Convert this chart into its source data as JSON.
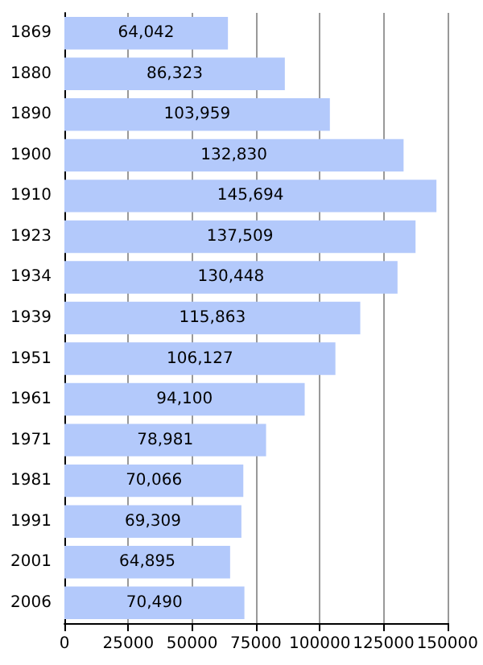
{
  "chart_data": {
    "type": "bar",
    "orientation": "horizontal",
    "categories": [
      "1869",
      "1880",
      "1890",
      "1900",
      "1910",
      "1923",
      "1934",
      "1939",
      "1951",
      "1961",
      "1971",
      "1981",
      "1991",
      "2001",
      "2006"
    ],
    "values": [
      64042,
      86323,
      103959,
      132830,
      145694,
      137509,
      130448,
      115863,
      106127,
      94100,
      78981,
      70066,
      69309,
      64895,
      70490
    ],
    "value_labels": [
      "64,042",
      "86,323",
      "103,959",
      "132,830",
      "145,694",
      "137,509",
      "130,448",
      "115,863",
      "106,127",
      "94,100",
      "78,981",
      "70,066",
      "69,309",
      "64,895",
      "70,490"
    ],
    "color": "#b3c9fb",
    "xlim": [
      0,
      150000
    ],
    "xticks": [
      0,
      25000,
      50000,
      75000,
      100000,
      125000,
      150000
    ],
    "grid": "x"
  }
}
